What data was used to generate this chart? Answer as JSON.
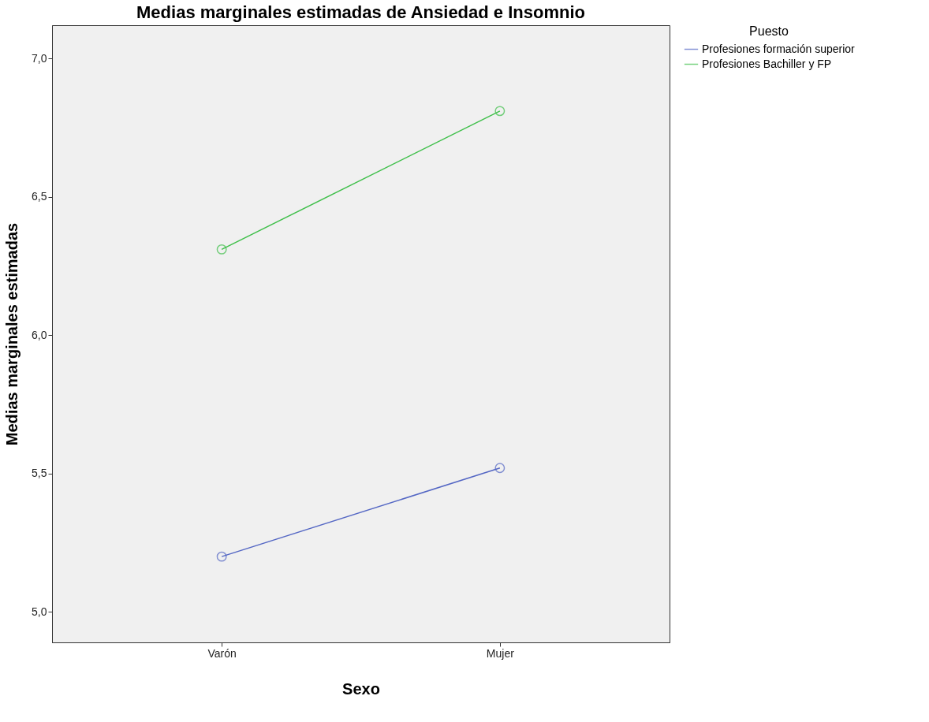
{
  "chart_data": {
    "type": "line",
    "title": "Medias marginales estimadas de Ansiedad e Insomnio",
    "xlabel": "Sexo",
    "ylabel": "Medias marginales estimadas",
    "legend_title": "Puesto",
    "categories": [
      "Varón",
      "Mujer"
    ],
    "series": [
      {
        "name": "Profesiones formación superior",
        "color": "#5467c4",
        "values": [
          5.2,
          5.52
        ]
      },
      {
        "name": "Profesiones Bachiller y FP",
        "color": "#3fbf4a",
        "values": [
          6.31,
          6.81
        ]
      }
    ],
    "ylim": [
      4.89,
      7.12
    ],
    "yticks": [
      {
        "value": 5.0,
        "label": "5,0"
      },
      {
        "value": 5.5,
        "label": "5,5"
      },
      {
        "value": 6.0,
        "label": "6,0"
      },
      {
        "value": 6.5,
        "label": "6,5"
      },
      {
        "value": 7.0,
        "label": "7,0"
      }
    ],
    "grid": false,
    "legend": "top right",
    "marker": "circle",
    "line_style": "solid"
  }
}
